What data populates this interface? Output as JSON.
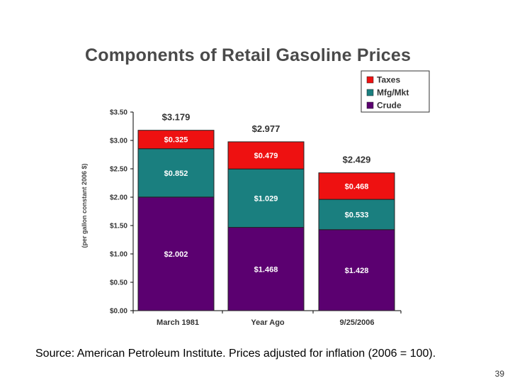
{
  "chart_data": {
    "type": "bar",
    "stacked": true,
    "title": "Components of Retail Gasoline Prices",
    "xlabel": "",
    "ylabel": "(per gallon constant 2006 $)",
    "categories": [
      "March 1981",
      "Year Ago",
      "9/25/2006"
    ],
    "series": [
      {
        "name": "Crude",
        "color": "#5b0070",
        "values": [
          2.002,
          1.468,
          1.428
        ],
        "labels": [
          "$2.002",
          "$1.468",
          "$1.428"
        ]
      },
      {
        "name": "Mfg/Mkt",
        "color": "#1a7f7f",
        "values": [
          0.852,
          1.029,
          0.533
        ],
        "labels": [
          "$0.852",
          "$1.029",
          "$0.533"
        ]
      },
      {
        "name": "Taxes",
        "color": "#ee1111",
        "values": [
          0.325,
          0.479,
          0.468
        ],
        "labels": [
          "$0.325",
          "$0.479",
          "$0.468"
        ]
      }
    ],
    "totals": [
      "$3.179",
      "$2.977",
      "$2.429"
    ],
    "ylim": [
      0,
      3.5
    ],
    "yticks": [
      0,
      0.5,
      1.0,
      1.5,
      2.0,
      2.5,
      3.0,
      3.5
    ],
    "ytick_labels": [
      "$0.00",
      "$0.50",
      "$1.00",
      "$1.50",
      "$2.00",
      "$2.50",
      "$3.00",
      "$3.50"
    ],
    "legend_order": [
      "Taxes",
      "Mfg/Mkt",
      "Crude"
    ],
    "legend_position": "top-right",
    "grid": false
  },
  "footer": {
    "source": "Source: American Petroleum Institute.  Prices adjusted for inflation (2006 = 100).",
    "page_number": "39"
  }
}
